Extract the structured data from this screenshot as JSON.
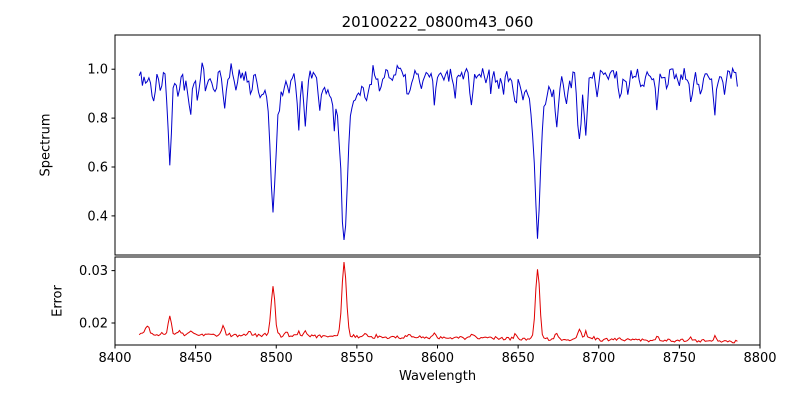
{
  "figure": {
    "title": "20100222_0800m43_060",
    "xlabel": "Wavelength",
    "background": "#ffffff"
  },
  "axes": {
    "xlim": [
      8400,
      8800
    ],
    "xticks": [
      8400,
      8450,
      8500,
      8550,
      8600,
      8650,
      8700,
      8750,
      8800
    ],
    "xtick_labels": [
      "8400",
      "8450",
      "8500",
      "8550",
      "8600",
      "8650",
      "8700",
      "8750",
      "8800"
    ]
  },
  "seed": 7,
  "chart_data": [
    {
      "type": "line",
      "name": "spectrum",
      "ylabel": "Spectrum",
      "color": "#0000cc",
      "x_start": 8415,
      "x_end": 8786,
      "step": 1.0,
      "ylim": [
        0.24,
        1.14
      ],
      "yticks": [
        0.4,
        0.6,
        0.8,
        1.0
      ],
      "ytick_labels": [
        "0.4",
        "0.6",
        "0.8",
        "1.0"
      ],
      "continuum": 0.98,
      "noise_band": 0.05,
      "absorption_lines": [
        [
          8419,
          0.05,
          0.8
        ],
        [
          8424,
          0.11,
          1.1
        ],
        [
          8428,
          0.06,
          0.8
        ],
        [
          8434,
          0.38,
          1.1
        ],
        [
          8439,
          0.12,
          0.9
        ],
        [
          8443,
          0.07,
          0.8
        ],
        [
          8447,
          0.17,
          1.0
        ],
        [
          8451,
          0.09,
          0.8
        ],
        [
          8457,
          0.06,
          0.8
        ],
        [
          8462,
          0.09,
          0.8
        ],
        [
          8468,
          0.14,
          1.0
        ],
        [
          8475,
          0.07,
          0.8
        ],
        [
          8484,
          0.09,
          0.9
        ],
        [
          8490,
          0.06,
          0.8
        ],
        [
          8498.0,
          0.42,
          1.5
        ],
        [
          8498.0,
          0.14,
          5.0
        ],
        [
          8508,
          0.07,
          0.8
        ],
        [
          8514,
          0.17,
          1.0
        ],
        [
          8518,
          0.2,
          1.0
        ],
        [
          8527,
          0.11,
          0.9
        ],
        [
          8536,
          0.07,
          0.8
        ],
        [
          8542.1,
          0.52,
          1.7
        ],
        [
          8542.1,
          0.16,
          8.0
        ],
        [
          8556,
          0.08,
          0.8
        ],
        [
          8564,
          0.06,
          0.8
        ],
        [
          8582,
          0.09,
          0.8
        ],
        [
          8590,
          0.06,
          0.8
        ],
        [
          8598,
          0.11,
          0.9
        ],
        [
          8611,
          0.08,
          0.8
        ],
        [
          8621,
          0.12,
          0.9
        ],
        [
          8633,
          0.06,
          0.8
        ],
        [
          8641,
          0.07,
          0.8
        ],
        [
          8648,
          0.11,
          0.9
        ],
        [
          8662.1,
          0.49,
          1.6
        ],
        [
          8662.1,
          0.15,
          7.0
        ],
        [
          8674,
          0.18,
          1.0
        ],
        [
          8680,
          0.11,
          0.9
        ],
        [
          8688,
          0.29,
          1.1
        ],
        [
          8692,
          0.23,
          1.0
        ],
        [
          8699,
          0.09,
          0.8
        ],
        [
          8713,
          0.1,
          0.9
        ],
        [
          8718,
          0.08,
          0.8
        ],
        [
          8727,
          0.06,
          0.8
        ],
        [
          8736,
          0.13,
          0.9
        ],
        [
          8742,
          0.08,
          0.8
        ],
        [
          8750,
          0.06,
          0.8
        ],
        [
          8757,
          0.12,
          0.9
        ],
        [
          8764,
          0.08,
          0.8
        ],
        [
          8772,
          0.13,
          0.9
        ],
        [
          8778,
          0.07,
          0.8
        ]
      ]
    },
    {
      "type": "line",
      "name": "error",
      "ylabel": "Error",
      "color": "#e00000",
      "x_start": 8415,
      "x_end": 8786,
      "step": 1.0,
      "ylim": [
        0.0158,
        0.0326
      ],
      "yticks": [
        0.02,
        0.03
      ],
      "ytick_labels": [
        "0.02",
        "0.03"
      ],
      "baseline_start": 0.0179,
      "baseline_slope": -3.8e-06,
      "noise_band": 0.0006,
      "peaks": [
        [
          8420,
          0.0018,
          1.2
        ],
        [
          8434,
          0.0034,
          1.0
        ],
        [
          8440,
          0.001,
          0.9
        ],
        [
          8447,
          0.0009,
          0.9
        ],
        [
          8467,
          0.0016,
          1.0
        ],
        [
          8483,
          0.0008,
          0.9
        ],
        [
          8498,
          0.0094,
          1.2
        ],
        [
          8506,
          0.0009,
          0.9
        ],
        [
          8514,
          0.0008,
          0.9
        ],
        [
          8518,
          0.001,
          0.9
        ],
        [
          8542.1,
          0.014,
          1.4
        ],
        [
          8556,
          0.0006,
          0.8
        ],
        [
          8582,
          0.0006,
          0.8
        ],
        [
          8598,
          0.0007,
          0.8
        ],
        [
          8621,
          0.0008,
          0.8
        ],
        [
          8648,
          0.0007,
          0.8
        ],
        [
          8662.1,
          0.0136,
          1.3
        ],
        [
          8674,
          0.0012,
          0.9
        ],
        [
          8688,
          0.002,
          1.0
        ],
        [
          8692,
          0.0014,
          0.9
        ],
        [
          8713,
          0.0007,
          0.8
        ],
        [
          8736,
          0.0009,
          0.8
        ],
        [
          8757,
          0.0008,
          0.8
        ],
        [
          8772,
          0.0009,
          0.8
        ]
      ]
    }
  ]
}
